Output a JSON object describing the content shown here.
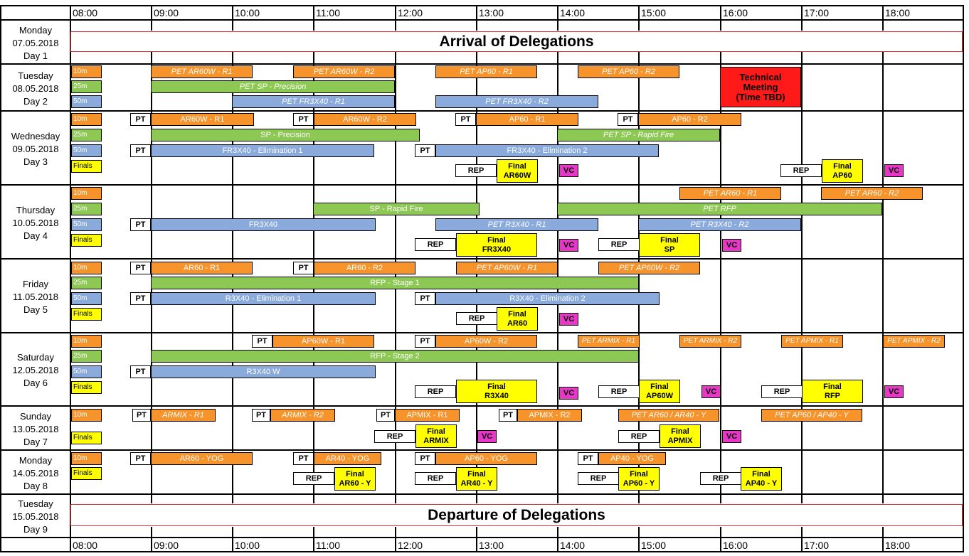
{
  "colors": {
    "10m": "#f6932b",
    "25m": "#8cc853",
    "50m": "#8aaadb",
    "finals": "#ffff00",
    "vc": "#e637c7",
    "tech": "#ff1a1a"
  },
  "times": [
    "08:00",
    "09:00",
    "10:00",
    "11:00",
    "12:00",
    "13:00",
    "14:00",
    "15:00",
    "16:00",
    "17:00",
    "18:00"
  ],
  "days": [
    {
      "l1": "Monday",
      "l2": "07.05.2018",
      "l3": "Day 1"
    },
    {
      "l1": "Tuesday",
      "l2": "08.05.2018",
      "l3": "Day 2"
    },
    {
      "l1": "Wednesday",
      "l2": "09.05.2018",
      "l3": "Day 3"
    },
    {
      "l1": "Thursday",
      "l2": "10.05.2018",
      "l3": "Day 4"
    },
    {
      "l1": "Friday",
      "l2": "11.05.2018",
      "l3": "Day 5"
    },
    {
      "l1": "Saturday",
      "l2": "12.05.2018",
      "l3": "Day 6"
    },
    {
      "l1": "Sunday",
      "l2": "13.05.2018",
      "l3": "Day 7"
    },
    {
      "l1": "Monday",
      "l2": "14.05.2018",
      "l3": "Day 8"
    },
    {
      "l1": "Tuesday",
      "l2": "15.05.2018",
      "l3": "Day 9"
    }
  ],
  "banners": {
    "arrival": "Arrival of Delegations",
    "departure": "Departure of Delegations"
  },
  "venues": {
    "v10m": "10m",
    "v25m": "25m",
    "v50m": "50m",
    "finals": "Finals"
  },
  "labels": {
    "pt": "PT",
    "rep": "REP",
    "vc": "VC",
    "final": "Final"
  },
  "tech": {
    "l1": "Technical",
    "l2": "Meeting",
    "l3": "(Time TBD)"
  },
  "events": {
    "d2_pet_ar60w_r1": "PET AR60W - R1",
    "d2_pet_ar60w_r2": "PET AR60W - R2",
    "d2_pet_ap60_r1": "PET AP60 - R1",
    "d2_pet_ap60_r2": "PET AP60 - R2",
    "d2_pet_sp": "PET SP - Precision",
    "d2_pet_fr_r1": "PET FR3X40 - R1",
    "d2_pet_fr_r2": "PET FR3X40 - R2",
    "d3_ar60w_r1": "AR60W - R1",
    "d3_ar60w_r2": "AR60W - R2",
    "d3_ap60_r1": "AP60 - R1",
    "d3_ap60_r2": "AP60 - R2",
    "d3_sp": "SP - Precision",
    "d3_pet_sp_rf": "PET SP - Rapid Fire",
    "d3_fr_e1": "FR3X40 - Elimination 1",
    "d3_fr_e2": "FR3X40 - Elimination 2",
    "d3_f1": "AR60W",
    "d3_f2": "AP60",
    "d4_pet_ar60_r1": "PET AR60 - R1",
    "d4_pet_ar60_r2": "PET AR60 - R2",
    "d4_sp_rf": "SP - Rapid Fire",
    "d4_pet_rfp": "PET RFP",
    "d4_fr": "FR3X40",
    "d4_pet_r3_r1": "PET R3X40 - R1",
    "d4_pet_r3_r2": "PET R3X40 - R2",
    "d4_f1": "FR3X40",
    "d4_f2": "SP",
    "d5_ar60_r1": "AR60 - R1",
    "d5_ar60_r2": "AR60 - R2",
    "d5_pet_ap60w_r1": "PET AP60W - R1",
    "d5_pet_ap60w_r2": "PET AP60W - R2",
    "d5_rfp": "RFP - Stage 1",
    "d5_r3_e1": "R3X40 - Elimination 1",
    "d5_r3_e2": "R3X40 - Elimination 2",
    "d5_f1": "AR60",
    "d6_ap60w_r1": "AP60W - R1",
    "d6_ap60w_r2": "AP60W - R2",
    "d6_pet_armix_r1": "PET ARMIX - R1",
    "d6_pet_armix_r2": "PET ARMIX - R2",
    "d6_pet_apmix_r1": "PET APMIX - R1",
    "d6_pet_apmix_r2": "PET APMIX - R2",
    "d6_rfp": "RFP - Stage 2",
    "d6_r3w": "R3X40 W",
    "d6_f1": "R3X40",
    "d6_f2": "AP60W",
    "d6_f3": "RFP",
    "d7_armix_r1": "ARMIX - R1",
    "d7_armix_r2": "ARMIX - R2",
    "d7_apmix_r1": "APMIX - R1",
    "d7_apmix_r2": "APMIX - R2",
    "d7_pet_ar": "PET AR60 / AR40 - Y",
    "d7_pet_ap": "PET AP60 / AP40 - Y",
    "d7_f1": "ARMIX",
    "d7_f2": "APMIX",
    "d8_ar60_yog": "AR60 - YOG",
    "d8_ar40_yog": "AR40 - YOG",
    "d8_ap60_yog": "AP60 - YOG",
    "d8_ap40_yog": "AP40 - YOG",
    "d8_f1": "AR60 - Y",
    "d8_f2": "AR40 - Y",
    "d8_f3": "AP60 - Y",
    "d8_f4": "AP40 - Y"
  }
}
